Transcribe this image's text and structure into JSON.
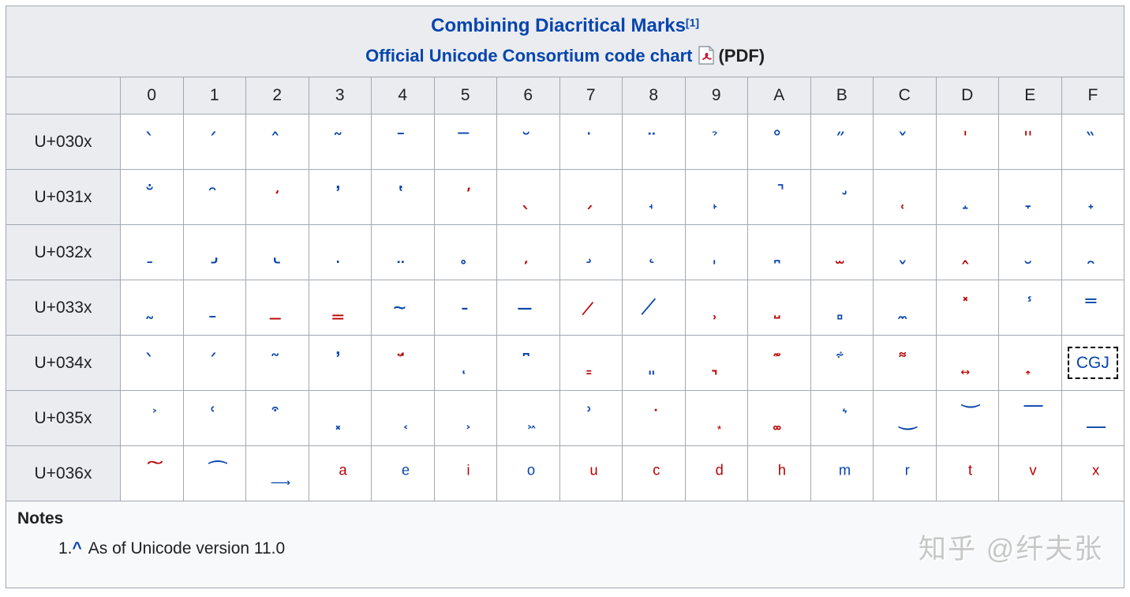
{
  "header": {
    "title": "Combining Diacritical Marks",
    "ref": "[1]",
    "link_text": "Official Unicode Consortium code chart",
    "pdf_suffix": "(PDF)"
  },
  "columns": [
    "0",
    "1",
    "2",
    "3",
    "4",
    "5",
    "6",
    "7",
    "8",
    "9",
    "A",
    "B",
    "C",
    "D",
    "E",
    "F"
  ],
  "rows": [
    {
      "label": "U+030x",
      "cells": [
        [
          "̀",
          "b"
        ],
        [
          "́",
          "b"
        ],
        [
          "̂",
          "b"
        ],
        [
          "̃",
          "b"
        ],
        [
          "̄",
          "b"
        ],
        [
          "̅",
          "b"
        ],
        [
          "̆",
          "b"
        ],
        [
          "̇",
          "b"
        ],
        [
          "̈",
          "b"
        ],
        [
          "̉",
          "b"
        ],
        [
          "̊",
          "b"
        ],
        [
          "̋",
          "b"
        ],
        [
          "̌",
          "b"
        ],
        [
          "̍",
          "r"
        ],
        [
          "̎",
          "r"
        ],
        [
          "̏",
          "b"
        ]
      ]
    },
    {
      "label": "U+031x",
      "cells": [
        [
          "̐",
          "b"
        ],
        [
          "̑",
          "b"
        ],
        [
          "̒",
          "r"
        ],
        [
          "̓",
          "b"
        ],
        [
          "̔",
          "b"
        ],
        [
          "̕",
          "r"
        ],
        [
          "̖",
          "r"
        ],
        [
          "̗",
          "r"
        ],
        [
          "̘",
          "b"
        ],
        [
          "̙",
          "b"
        ],
        [
          "̚",
          "b"
        ],
        [
          "̛",
          "b"
        ],
        [
          "̜",
          "r"
        ],
        [
          "̝",
          "b"
        ],
        [
          "̞",
          "b"
        ],
        [
          "̟",
          "b"
        ]
      ]
    },
    {
      "label": "U+032x",
      "cells": [
        [
          "̠",
          "b"
        ],
        [
          "̡",
          "b"
        ],
        [
          "̢",
          "b"
        ],
        [
          "̣",
          "b"
        ],
        [
          "̤",
          "b"
        ],
        [
          "̥",
          "b"
        ],
        [
          "̦",
          "r"
        ],
        [
          "̧",
          "b"
        ],
        [
          "̨",
          "b"
        ],
        [
          "̩",
          "b"
        ],
        [
          "̪",
          "b"
        ],
        [
          "̫",
          "r"
        ],
        [
          "̬",
          "b"
        ],
        [
          "̭",
          "r"
        ],
        [
          "̮",
          "b"
        ],
        [
          "̯",
          "b"
        ]
      ]
    },
    {
      "label": "U+033x",
      "cells": [
        [
          "̰",
          "b"
        ],
        [
          "̱",
          "b"
        ],
        [
          "̲",
          "r"
        ],
        [
          "̳",
          "r"
        ],
        [
          "̴",
          "b"
        ],
        [
          "̵",
          "b"
        ],
        [
          "̶",
          "b"
        ],
        [
          "̷",
          "r"
        ],
        [
          "̸",
          "b"
        ],
        [
          "̹",
          "r"
        ],
        [
          "̺",
          "r"
        ],
        [
          "̻",
          "b"
        ],
        [
          "̼",
          "b"
        ],
        [
          "̽",
          "r"
        ],
        [
          "̾",
          "b"
        ],
        [
          "̿",
          "b"
        ]
      ]
    },
    {
      "label": "U+034x",
      "cells": [
        [
          "̀",
          "b"
        ],
        [
          "́",
          "b"
        ],
        [
          "͂",
          "b"
        ],
        [
          "̓",
          "b"
        ],
        [
          "̈́",
          "r"
        ],
        [
          "ͅ",
          "b"
        ],
        [
          "͆",
          "b"
        ],
        [
          "͇",
          "r"
        ],
        [
          "͈",
          "b"
        ],
        [
          "͉",
          "r"
        ],
        [
          "͊",
          "r"
        ],
        [
          "͋",
          "b"
        ],
        [
          "͌",
          "r"
        ],
        [
          "͍",
          "r"
        ],
        [
          "͎",
          "r"
        ],
        [
          "CGJ",
          "b",
          "box"
        ]
      ]
    },
    {
      "label": "U+035x",
      "cells": [
        [
          "͐",
          "b"
        ],
        [
          "͑",
          "b"
        ],
        [
          "͒",
          "b"
        ],
        [
          "͓",
          "b"
        ],
        [
          "͔",
          "b"
        ],
        [
          "͕",
          "b"
        ],
        [
          "͖",
          "b"
        ],
        [
          "͗",
          "b"
        ],
        [
          "͘",
          "r"
        ],
        [
          "͙",
          "r"
        ],
        [
          "͚",
          "r"
        ],
        [
          "͛",
          "b"
        ],
        [
          "͜",
          "b"
        ],
        [
          "͝",
          "b"
        ],
        [
          "͞",
          "b"
        ],
        [
          "͟",
          "b"
        ]
      ]
    },
    {
      "label": "U+036x",
      "cells": [
        [
          "͠",
          "r"
        ],
        [
          "͡",
          "b"
        ],
        [
          "͢",
          "b"
        ],
        [
          "ͣ",
          "r"
        ],
        [
          "ͤ",
          "b"
        ],
        [
          "ͥ",
          "r"
        ],
        [
          "ͦ",
          "b"
        ],
        [
          "ͧ",
          "r"
        ],
        [
          "ͨ",
          "r"
        ],
        [
          "ͩ",
          "r"
        ],
        [
          "ͪ",
          "r"
        ],
        [
          "ͫ",
          "b"
        ],
        [
          "ͬ",
          "b"
        ],
        [
          "ͭ",
          "r"
        ],
        [
          "ͮ",
          "r"
        ],
        [
          "ͯ",
          "r"
        ]
      ]
    }
  ],
  "notes": {
    "heading": "Notes",
    "note_number": "1.",
    "note_backlink": "^",
    "note_text": "As of Unicode version 11.0"
  },
  "watermark": "知乎 @纤夫张",
  "colors": {
    "link_blue": "#0645ad",
    "red_link": "#ba0000",
    "header_bg": "#eaecf0",
    "border": "#a2a9b1"
  }
}
